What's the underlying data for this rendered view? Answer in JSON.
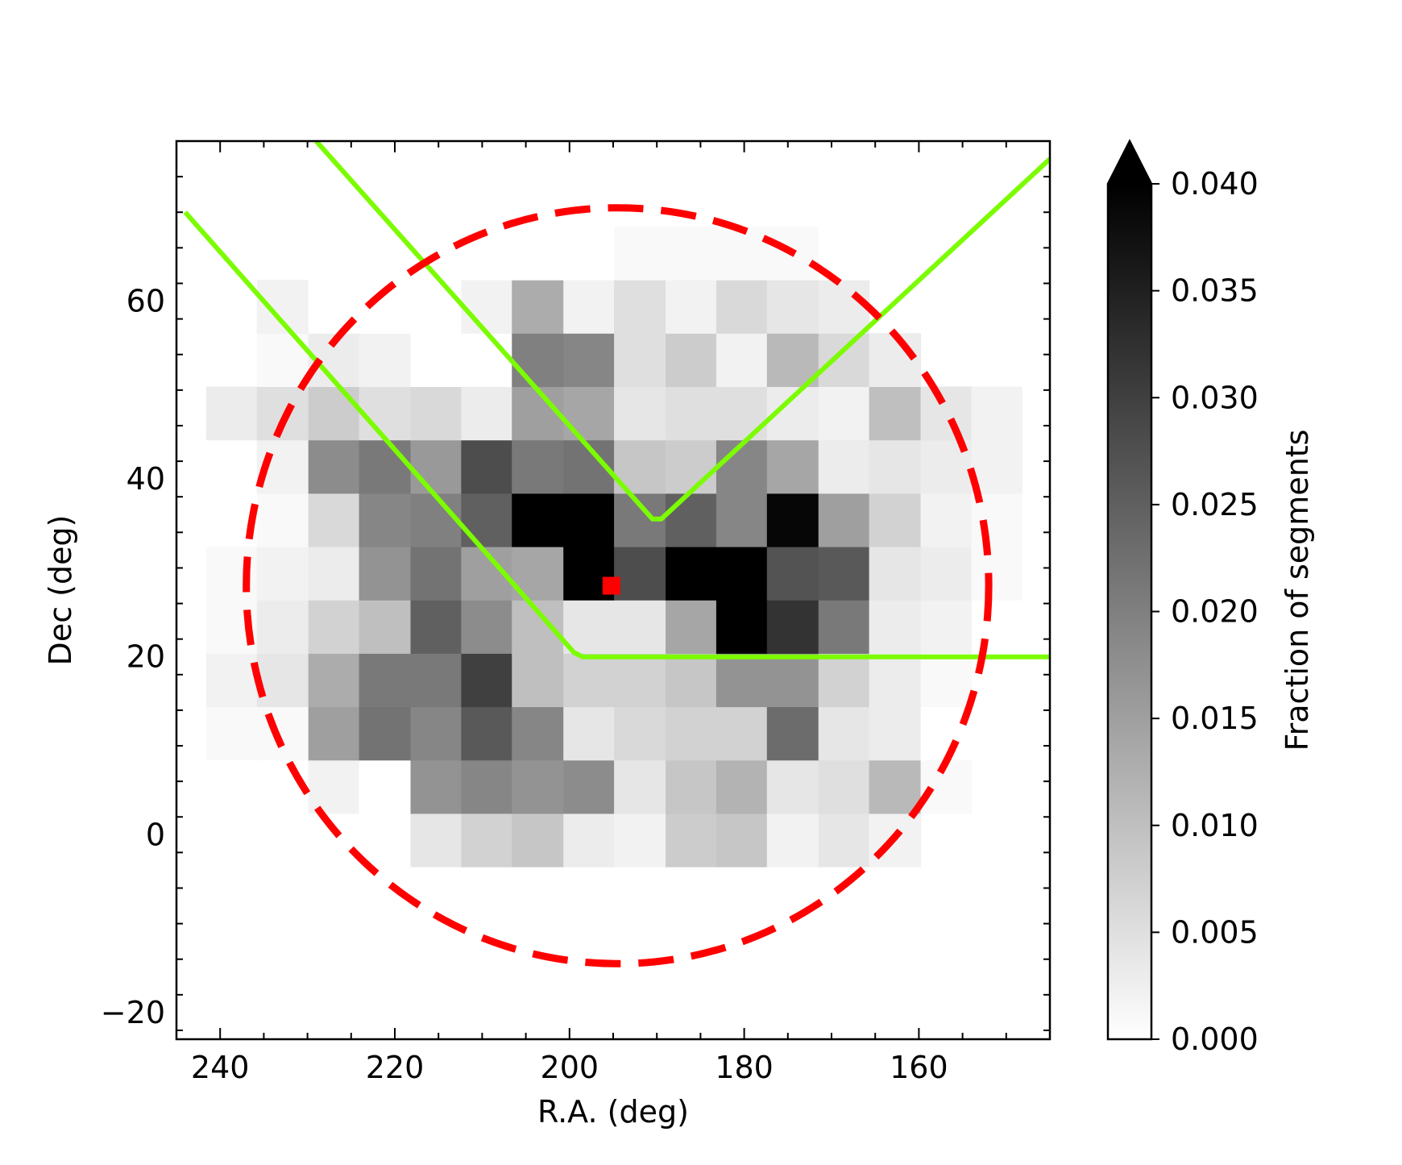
{
  "chart_data": {
    "type": "heatmap",
    "xlabel": "R.A. (deg)",
    "ylabel": "Dec (deg)",
    "xlim": [
      245,
      145
    ],
    "ylim": [
      -23,
      78
    ],
    "x_ticks": [
      240,
      220,
      200,
      180,
      160
    ],
    "y_ticks": [
      -20,
      0,
      20,
      40,
      60
    ],
    "x_tick_labels": [
      "240",
      "220",
      "200",
      "180",
      "160"
    ],
    "y_tick_labels": [
      "−20",
      "0",
      "20",
      "40",
      "60"
    ],
    "bin_ra_edges": [
      241.6,
      235.8,
      229.9,
      224.1,
      218.2,
      212.4,
      206.6,
      200.7,
      194.9,
      189.0,
      183.2,
      177.4,
      171.5,
      165.7,
      159.8,
      154.0,
      148.2
    ],
    "bin_dec_edges": [
      -3.6,
      2.4,
      8.4,
      14.4,
      20.4,
      26.4,
      32.4,
      38.4,
      44.4,
      50.4,
      56.4,
      62.4,
      68.4
    ],
    "rows": [
      {
        "dec": [
          -3.6,
          2.4
        ],
        "values": [
          null,
          null,
          null,
          0.0,
          0.004,
          0.007,
          0.009,
          0.003,
          0.002,
          0.008,
          0.009,
          0.002,
          0.004,
          0.002,
          null,
          null
        ]
      },
      {
        "dec": [
          2.4,
          8.4
        ],
        "values": [
          null,
          0.0,
          0.002,
          0.0,
          0.017,
          0.019,
          0.017,
          0.018,
          0.004,
          0.009,
          0.012,
          0.004,
          0.005,
          0.011,
          0.001,
          null
        ]
      },
      {
        "dec": [
          8.4,
          14.4
        ],
        "values": [
          0.001,
          0.001,
          0.015,
          0.022,
          0.019,
          0.026,
          0.019,
          0.004,
          0.006,
          0.007,
          0.007,
          0.023,
          0.004,
          0.003,
          0.0,
          null
        ]
      },
      {
        "dec": [
          14.4,
          20.4
        ],
        "values": [
          0.002,
          0.004,
          0.013,
          0.021,
          0.021,
          0.03,
          0.01,
          0.007,
          0.007,
          0.009,
          0.017,
          0.017,
          0.007,
          0.003,
          0.001,
          null
        ]
      },
      {
        "dec": [
          20.4,
          26.4
        ],
        "values": [
          0.001,
          0.003,
          0.007,
          0.01,
          0.025,
          0.018,
          0.01,
          0.004,
          0.004,
          0.014,
          0.04,
          0.032,
          0.021,
          0.003,
          0.002,
          null
        ]
      },
      {
        "dec": [
          26.4,
          32.4
        ],
        "values": [
          0.001,
          0.002,
          0.003,
          0.017,
          0.022,
          0.015,
          0.014,
          0.04,
          0.028,
          0.04,
          0.04,
          0.027,
          0.026,
          0.004,
          0.003,
          0.001
        ]
      },
      {
        "dec": [
          32.4,
          38.4
        ],
        "values": [
          0.0,
          0.001,
          0.006,
          0.019,
          0.02,
          0.025,
          0.04,
          0.04,
          0.021,
          0.025,
          0.019,
          0.039,
          0.015,
          0.007,
          0.002,
          0.001
        ]
      },
      {
        "dec": [
          38.4,
          44.4
        ],
        "values": [
          0.0,
          0.002,
          0.018,
          0.021,
          0.016,
          0.028,
          0.021,
          0.022,
          0.009,
          0.008,
          0.019,
          0.014,
          0.003,
          0.004,
          0.003,
          0.002
        ]
      },
      {
        "dec": [
          44.4,
          50.4
        ],
        "values": [
          0.003,
          0.005,
          0.008,
          0.005,
          0.006,
          0.003,
          0.015,
          0.014,
          0.004,
          0.005,
          0.005,
          0.003,
          0.002,
          0.01,
          0.004,
          0.002
        ]
      },
      {
        "dec": [
          50.4,
          56.4
        ],
        "values": [
          null,
          0.001,
          0.003,
          0.002,
          0.0,
          0.0,
          0.02,
          0.019,
          0.005,
          0.008,
          0.002,
          0.011,
          0.006,
          0.003,
          null,
          null
        ]
      },
      {
        "dec": [
          56.4,
          62.4
        ],
        "values": [
          null,
          0.002,
          0.0,
          0.0,
          0.0,
          0.002,
          0.013,
          0.002,
          0.005,
          0.002,
          0.006,
          0.004,
          0.003,
          null,
          null,
          null
        ]
      },
      {
        "dec": [
          62.4,
          68.4
        ],
        "values": [
          null,
          null,
          null,
          0.0,
          0.0,
          0.0,
          0.0,
          0.0,
          0.001,
          0.001,
          0.001,
          0.001,
          0.0,
          null,
          null,
          null
        ]
      }
    ],
    "colorbar": {
      "label": "Fraction of segments",
      "vmin": 0.0,
      "vmax": 0.04,
      "extend": "max",
      "ticks": [
        0.0,
        0.005,
        0.01,
        0.015,
        0.02,
        0.025,
        0.03,
        0.035,
        0.04
      ],
      "tick_labels": [
        "0.000",
        "0.005",
        "0.010",
        "0.015",
        "0.020",
        "0.025",
        "0.030",
        "0.035",
        "0.040"
      ],
      "colormap": "Greys"
    },
    "overlays": {
      "circle": {
        "center_ra": 194.5,
        "center_dec": 28.0,
        "radius_deg": 42.5,
        "style": "dashed",
        "color": "#ff0000"
      },
      "marker": {
        "ra": 195.2,
        "dec": 28.0,
        "shape": "square",
        "color": "#ff0000"
      },
      "boundary_left": {
        "color": "#7cfc00",
        "points": [
          [
            244.0,
            70.0
          ],
          [
            199.5,
            20.5
          ],
          [
            198.5,
            20.0
          ],
          [
            145.0,
            20.0
          ]
        ]
      },
      "boundary_right": {
        "color": "#7cfc00",
        "points": [
          [
            229.0,
            78.0
          ],
          [
            190.5,
            35.5
          ],
          [
            189.5,
            35.5
          ],
          [
            145.0,
            76.0
          ]
        ]
      }
    }
  }
}
